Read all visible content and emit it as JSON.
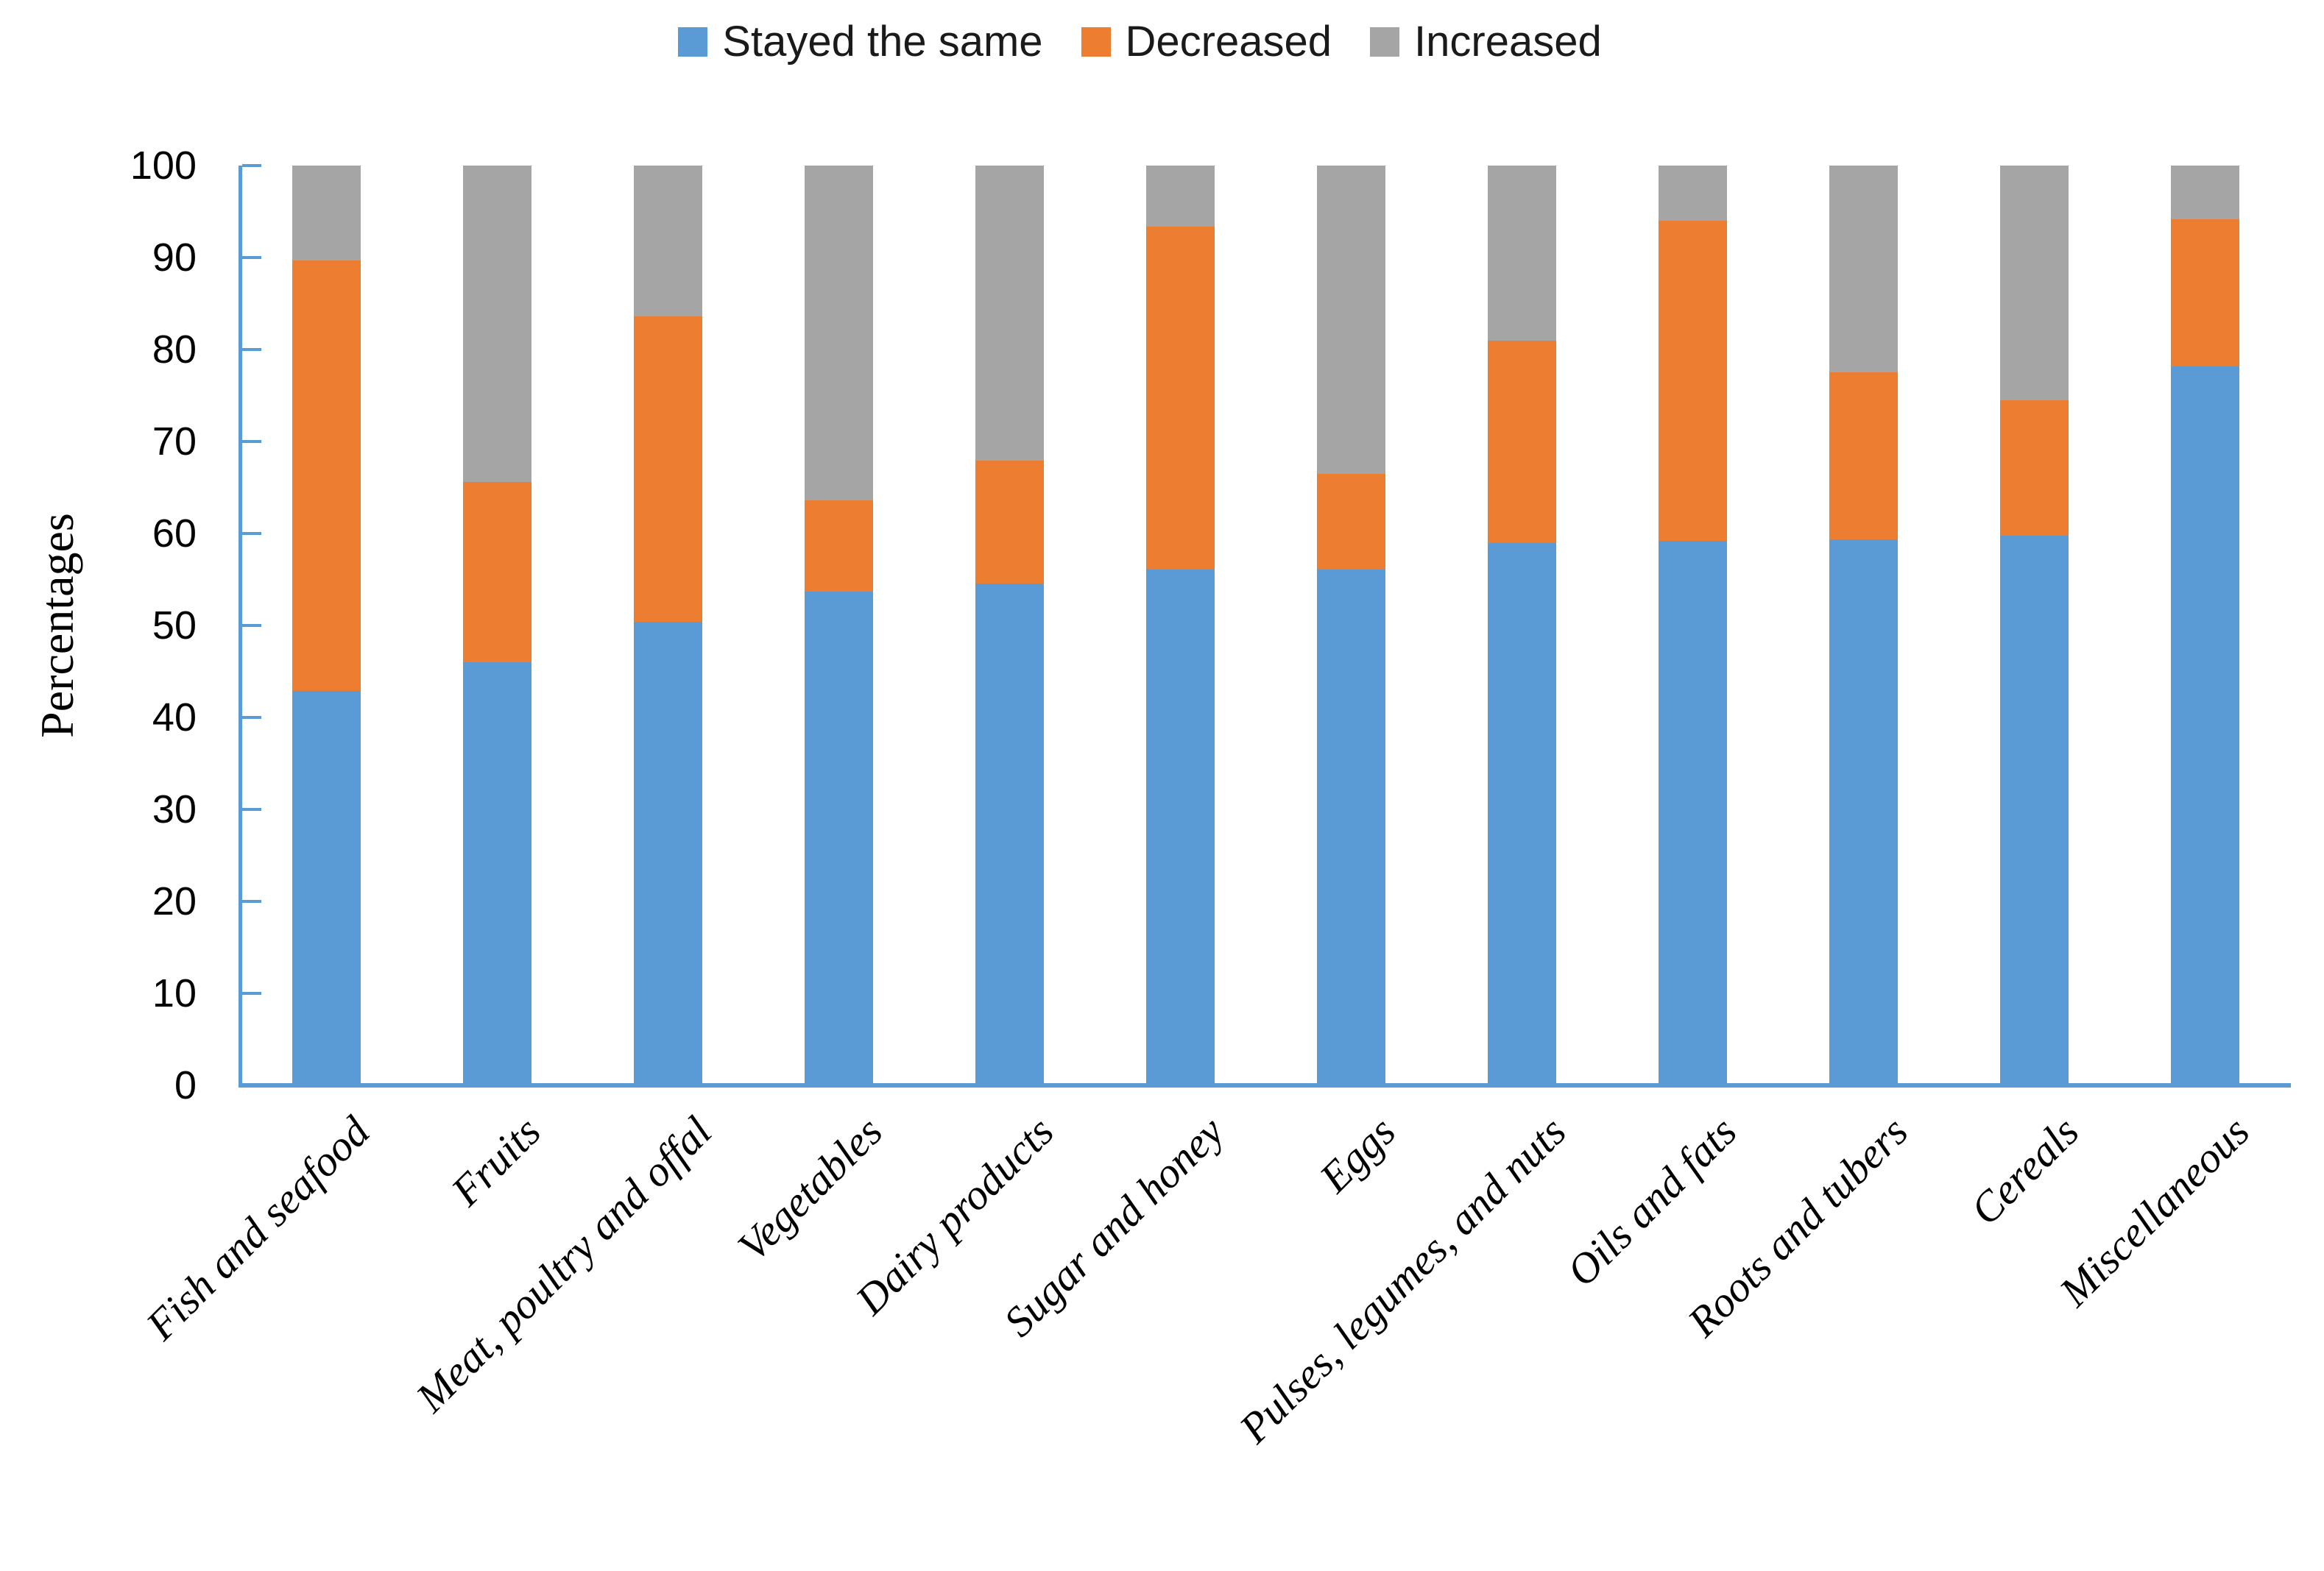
{
  "chart_data": {
    "type": "bar",
    "stacked": true,
    "ylabel": "Percentages",
    "ylim": [
      0,
      100
    ],
    "yticks": [
      0,
      10,
      20,
      30,
      40,
      50,
      60,
      70,
      80,
      90,
      100
    ],
    "grid": false,
    "legend_position": "top",
    "axis_color": "#5B9BD5",
    "categories": [
      "Fish and seafood",
      "Fruits",
      "Meat, poultry and offal",
      "Vegetables",
      "Dairy products",
      "Sugar and honey",
      "Eggs",
      "Pulses, legumes, and nuts",
      "Oils and fats",
      "Roots and tubers",
      "Cereals",
      "Miscellaneous"
    ],
    "series": [
      {
        "name": "Stayed the same",
        "color": "#5B9BD5",
        "values": [
          42.9,
          46.0,
          50.4,
          53.7,
          54.6,
          56.1,
          56.1,
          59.0,
          59.2,
          59.4,
          59.8,
          78.2
        ]
      },
      {
        "name": "Decreased",
        "color": "#ED7D31",
        "values": [
          46.8,
          19.6,
          33.2,
          9.9,
          13.3,
          37.3,
          10.4,
          22.0,
          34.8,
          18.1,
          14.7,
          16.0
        ]
      },
      {
        "name": "Increased",
        "color": "#A5A5A5",
        "values": [
          10.3,
          34.4,
          16.4,
          36.4,
          32.1,
          6.6,
          33.5,
          19.0,
          6.0,
          22.5,
          25.5,
          5.8
        ]
      }
    ]
  }
}
